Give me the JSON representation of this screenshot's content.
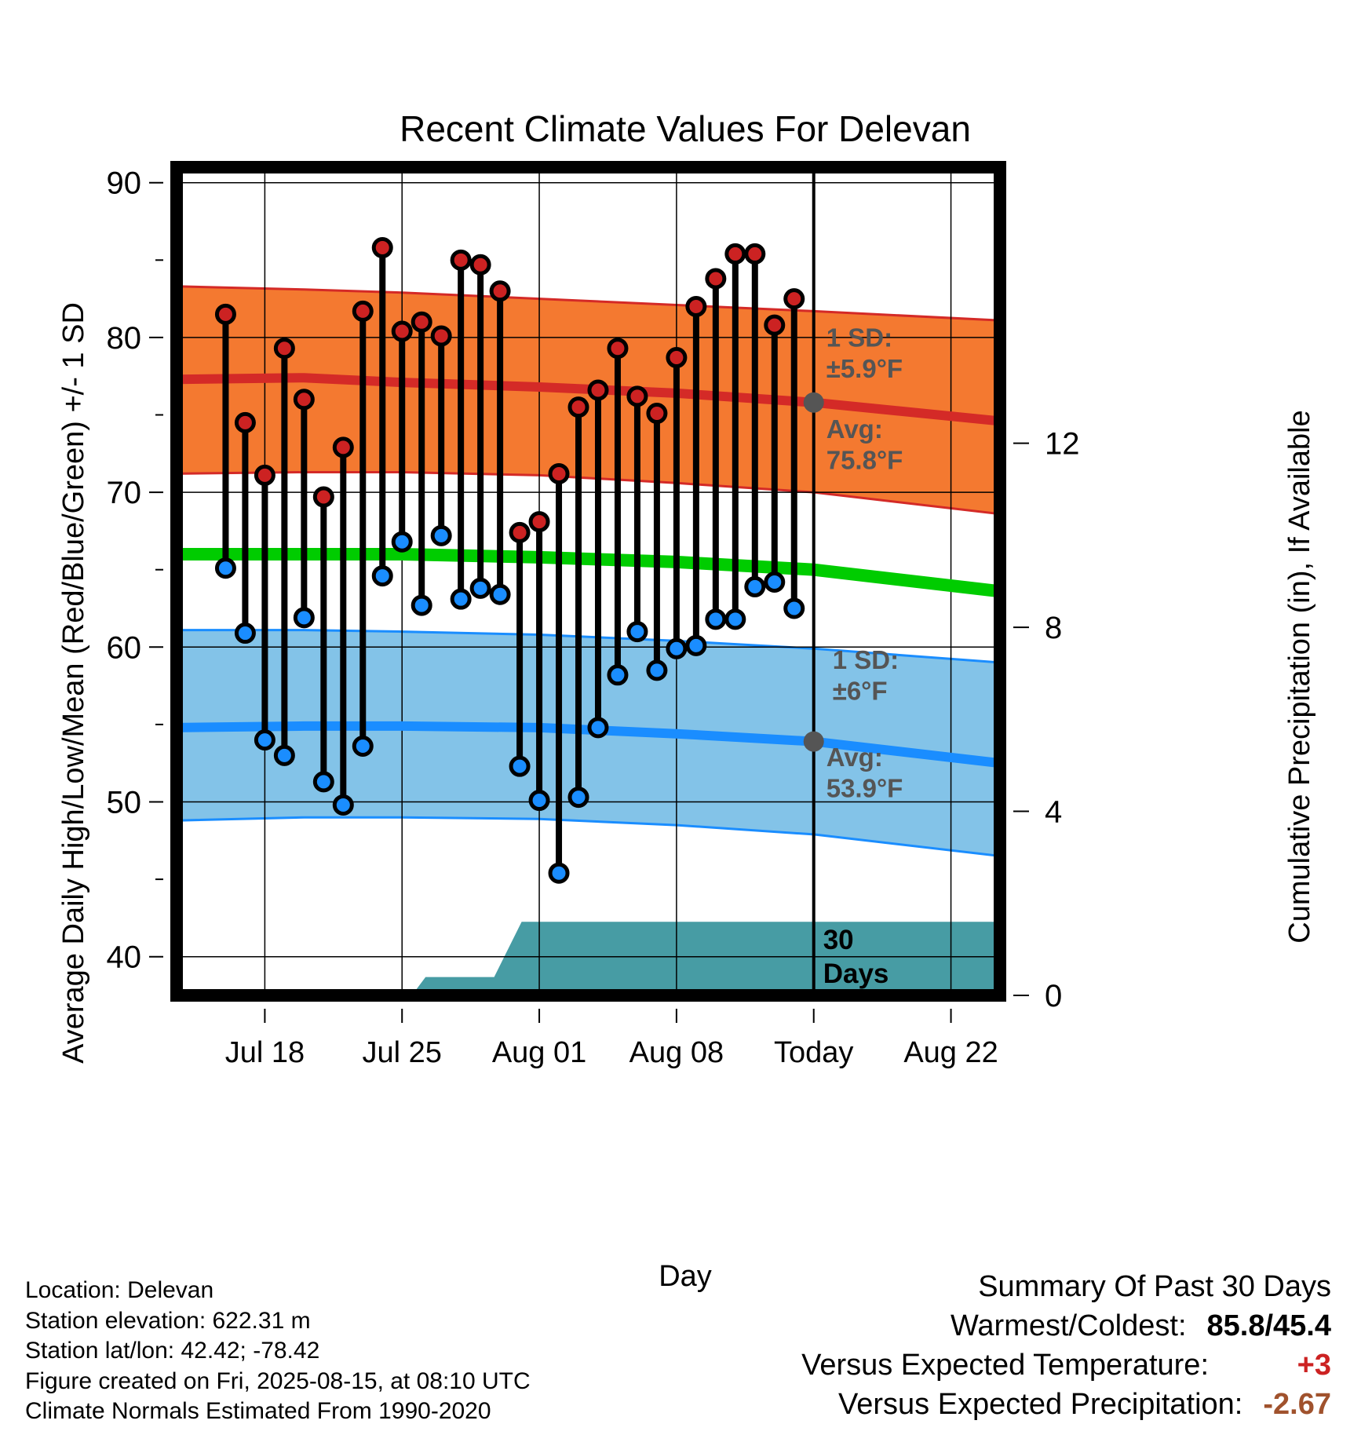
{
  "chart_data": {
    "type": "line",
    "title": "Recent Climate Values For Delevan",
    "xlabel": "Day",
    "ylabel_left": "Average Daily High/Low/Mean (Red/Blue/Green) +/- 1 SD",
    "ylabel_right": "Cumulative Precipitation (in), If Available",
    "y_left_range": [
      37.5,
      91
    ],
    "y_left_ticks": [
      "40",
      "50",
      "60",
      "70",
      "80",
      "90"
    ],
    "y_right_range": [
      0,
      18
    ],
    "y_right_ticks": [
      "0",
      "4",
      "8",
      "12"
    ],
    "x_range_days": [
      -32.5,
      9.5
    ],
    "x_tick_labels": [
      {
        "day": -28,
        "label": "Jul 18"
      },
      {
        "day": -21,
        "label": "Jul 25"
      },
      {
        "day": -14,
        "label": "Aug 01"
      },
      {
        "day": -7,
        "label": "Aug 08"
      },
      {
        "day": 0,
        "label": "Today"
      },
      {
        "day": 7,
        "label": "Aug 22"
      }
    ],
    "days_relative_to_today": [
      -30,
      -29,
      -28,
      -27,
      -26,
      -25,
      -24,
      -23,
      -22,
      -21,
      -20,
      -19,
      -18,
      -17,
      -16,
      -15,
      -14,
      -13,
      -12,
      -11,
      -10,
      -9,
      -8,
      -7,
      -6,
      -5,
      -4,
      -3,
      -2,
      -1
    ],
    "daily_high": [
      81.5,
      74.5,
      71.1,
      79.3,
      76.0,
      69.7,
      72.9,
      81.7,
      85.8,
      80.4,
      81.0,
      80.1,
      85.0,
      84.7,
      83.0,
      67.4,
      68.1,
      71.2,
      75.5,
      76.6,
      79.3,
      76.2,
      75.1,
      78.7,
      82.0,
      83.8,
      85.4,
      85.4,
      80.8,
      82.5
    ],
    "daily_low": [
      65.1,
      60.9,
      54.0,
      53.0,
      61.9,
      51.3,
      49.8,
      53.6,
      64.6,
      66.8,
      62.7,
      67.2,
      63.1,
      63.8,
      63.4,
      52.3,
      50.1,
      45.4,
      50.3,
      54.8,
      58.2,
      61.0,
      58.5,
      59.9,
      60.1,
      61.8,
      61.8,
      63.9,
      64.2,
      62.5
    ],
    "normals": {
      "x": [
        -32.5,
        -26,
        -21,
        -14,
        -7,
        0,
        9.5
      ],
      "high_avg": [
        77.3,
        77.4,
        77.1,
        76.8,
        76.4,
        75.8,
        74.6
      ],
      "high_upper": [
        83.3,
        83.1,
        82.9,
        82.5,
        82.1,
        81.7,
        81.1
      ],
      "high_lower": [
        71.2,
        71.3,
        71.3,
        71.1,
        70.6,
        70.0,
        68.6
      ],
      "mean": [
        66.0,
        66.0,
        66.0,
        65.8,
        65.5,
        65.0,
        63.6
      ],
      "low_avg": [
        54.8,
        54.9,
        54.9,
        54.8,
        54.4,
        53.9,
        52.5
      ],
      "low_upper": [
        61.1,
        61.1,
        61.0,
        60.8,
        60.4,
        59.9,
        59.0
      ],
      "low_lower": [
        48.8,
        49.0,
        49.0,
        48.9,
        48.5,
        47.9,
        46.5
      ]
    },
    "precip_cumulative_in": {
      "x": [
        -32.5,
        -20.5,
        -19.8,
        -16.3,
        -14.9,
        0,
        9.5
      ],
      "values": [
        0,
        0,
        0.4,
        0.4,
        1.6,
        1.6,
        1.6
      ]
    },
    "annotations": {
      "high_sd_label": "1 SD:",
      "high_sd_value": "±5.9°F",
      "high_avg_label": "Avg:",
      "high_avg_value": "75.8°F",
      "low_sd_label": "1 SD:",
      "low_sd_value": "±6°F",
      "low_avg_label": "Avg:",
      "low_avg_value": "53.9°F",
      "window_count": "30",
      "window_unit": "Days"
    },
    "colors": {
      "high_band": "#f47930",
      "high_line": "#d42a27",
      "low_band": "#83c3e8",
      "low_line": "#1a8dff",
      "mean_line": "#00cc00",
      "precip": "#479ca4",
      "high_dot": "#cc2222",
      "low_dot": "#1a8dff",
      "marker": "#555555"
    }
  },
  "info": {
    "location": "Location: Delevan",
    "elevation": "Station elevation: 622.31 m",
    "latlon": "Station lat/lon: 42.42; -78.42",
    "created": "Figure created on Fri, 2025-08-15, at 08:10 UTC",
    "normals": "Climate Normals Estimated From 1990-2020"
  },
  "summary": {
    "heading": "Summary Of Past 30 Days",
    "warm_cold_label": "Warmest/Coldest:",
    "warm_cold_value": "85.8/45.4",
    "temp_label": "Versus Expected Temperature:",
    "temp_value": "+3",
    "temp_color": "#cc2222",
    "precip_label": "Versus Expected Precipitation:",
    "precip_value": "-2.67",
    "precip_color": "#a0522d"
  }
}
